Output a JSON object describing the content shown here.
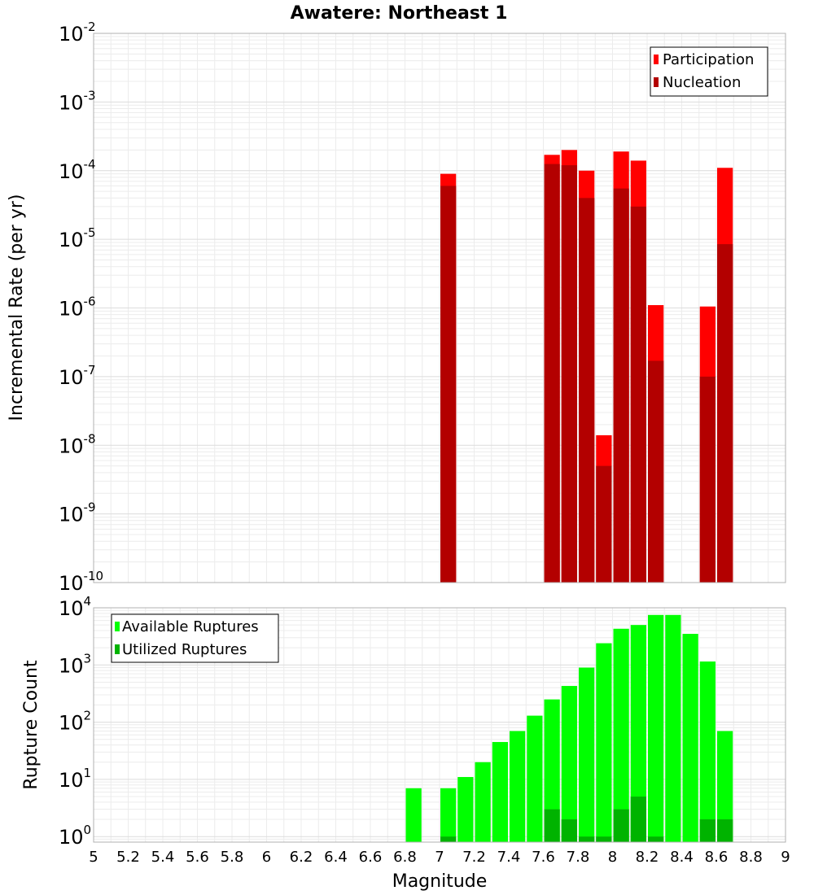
{
  "chart_data": [
    {
      "type": "bar",
      "title": "Awatere: Northeast 1",
      "xlabel": "Magnitude",
      "ylabel": "Incremental Rate (per yr)",
      "xlim": [
        5,
        9
      ],
      "ylim": [
        1e-10,
        0.01
      ],
      "yscale": "log",
      "bin_width": 0.1,
      "grid": true,
      "legend_position": "top-right",
      "x_ticks": [
        "5",
        "5.2",
        "5.4",
        "5.6",
        "5.8",
        "6",
        "6.2",
        "6.4",
        "6.6",
        "6.8",
        "7",
        "7.2",
        "7.4",
        "7.6",
        "7.8",
        "8",
        "8.2",
        "8.4",
        "8.6",
        "8.8",
        "9"
      ],
      "y_tick_exponents": [
        "-10",
        "-9",
        "-8",
        "-7",
        "-6",
        "-5",
        "-4",
        "-3",
        "-2"
      ],
      "y_tick_base": "10",
      "series": [
        {
          "name": "Participation",
          "color": "#ff0000",
          "x": [
            7.05,
            7.65,
            7.75,
            7.85,
            7.95,
            8.05,
            8.15,
            8.25,
            8.55,
            8.65
          ],
          "values": [
            9e-05,
            0.00017,
            0.0002,
            0.0001,
            1.4e-08,
            0.00019,
            0.00014,
            1.1e-06,
            1.05e-06,
            0.00011
          ]
        },
        {
          "name": "Nucleation",
          "color": "#b30000",
          "x": [
            7.05,
            7.65,
            7.75,
            7.85,
            7.95,
            8.05,
            8.15,
            8.25,
            8.55,
            8.65
          ],
          "values": [
            6e-05,
            0.000125,
            0.00012,
            4e-05,
            5e-09,
            5.5e-05,
            3e-05,
            1.7e-07,
            1e-07,
            8.5e-06
          ]
        }
      ]
    },
    {
      "type": "bar",
      "xlabel": "Magnitude",
      "ylabel": "Rupture Count",
      "xlim": [
        5,
        9
      ],
      "ylim": [
        0.8,
        10000
      ],
      "yscale": "log",
      "bin_width": 0.1,
      "grid": true,
      "legend_position": "top-left",
      "x_ticks": [
        "5",
        "5.2",
        "5.4",
        "5.6",
        "5.8",
        "6",
        "6.2",
        "6.4",
        "6.6",
        "6.8",
        "7",
        "7.2",
        "7.4",
        "7.6",
        "7.8",
        "8",
        "8.2",
        "8.4",
        "8.6",
        "8.8",
        "9"
      ],
      "y_tick_exponents": [
        "0",
        "1",
        "2",
        "3",
        "4"
      ],
      "y_tick_base": "10",
      "series": [
        {
          "name": "Available Ruptures",
          "color": "#00ff00",
          "x": [
            6.85,
            7.05,
            7.15,
            7.25,
            7.35,
            7.45,
            7.55,
            7.65,
            7.75,
            7.85,
            7.95,
            8.05,
            8.15,
            8.25,
            8.35,
            8.45,
            8.55,
            8.65
          ],
          "values": [
            7,
            7,
            11,
            20,
            45,
            70,
            130,
            250,
            430,
            900,
            2400,
            4300,
            5000,
            7500,
            7500,
            3500,
            1150,
            70
          ]
        },
        {
          "name": "Utilized Ruptures",
          "color": "#00b300",
          "x": [
            7.05,
            7.65,
            7.75,
            7.85,
            7.95,
            8.05,
            8.15,
            8.25,
            8.55,
            8.65
          ],
          "values": [
            1,
            3,
            2,
            1,
            1,
            3,
            5,
            1,
            2,
            2
          ]
        }
      ]
    }
  ]
}
